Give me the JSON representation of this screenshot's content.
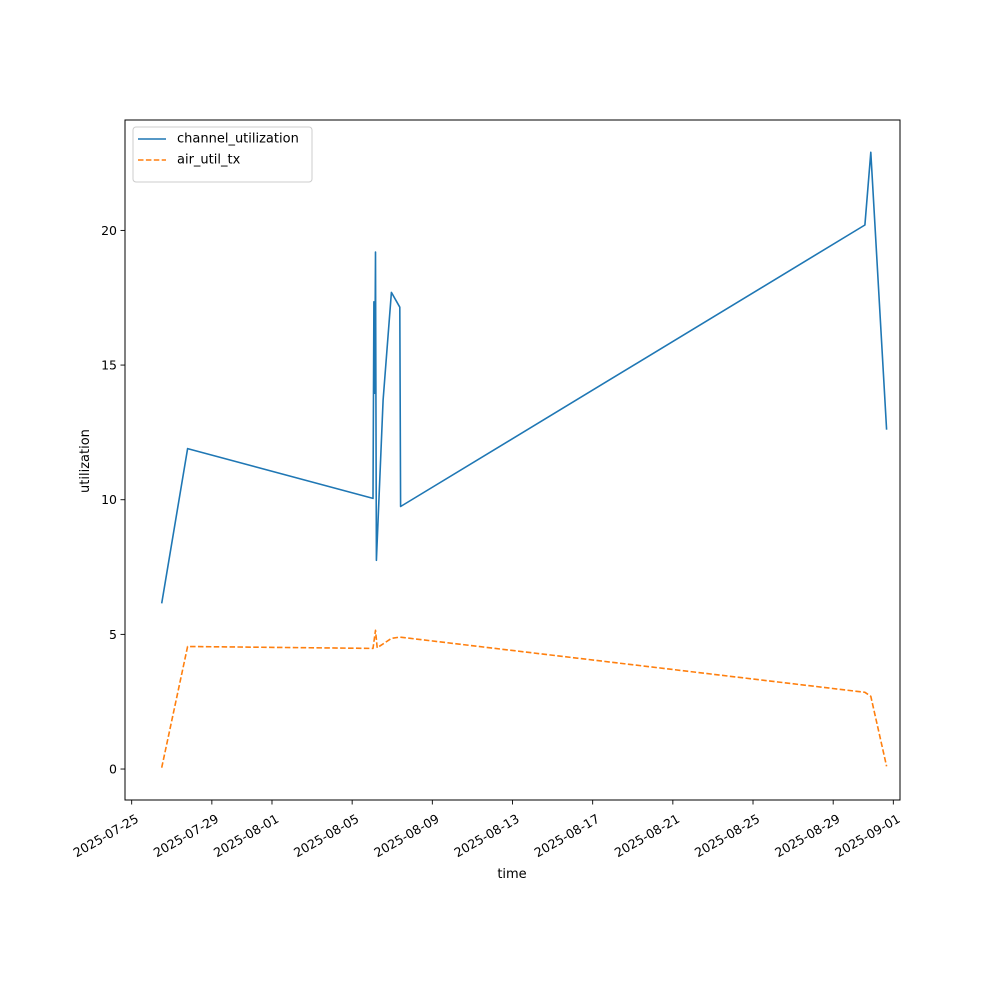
{
  "chart_data": {
    "type": "line",
    "xlabel": "time",
    "ylabel": "utilization",
    "xlim": [
      "2025-07-24T16:00:00",
      "2025-09-01T08:00:00"
    ],
    "ylim": [
      -1.15,
      24.1
    ],
    "x_ticks": [
      "2025-07-25",
      "2025-07-29",
      "2025-08-01",
      "2025-08-05",
      "2025-08-09",
      "2025-08-13",
      "2025-08-17",
      "2025-08-21",
      "2025-08-25",
      "2025-08-29",
      "2025-09-01"
    ],
    "y_ticks": [
      0,
      5,
      10,
      15,
      20
    ],
    "legend_position": "top-left",
    "grid": false,
    "series": [
      {
        "name": "channel_utilization",
        "color": "#1f77b4",
        "linestyle": "solid",
        "points": [
          [
            "2025-07-26T12:00:00",
            6.15
          ],
          [
            "2025-07-27T19:00:00",
            11.9
          ],
          [
            "2025-08-06T01:00:00",
            10.05
          ],
          [
            "2025-08-06T02:00:00",
            17.35
          ],
          [
            "2025-08-06T03:00:00",
            13.95
          ],
          [
            "2025-08-06T04:00:00",
            19.2
          ],
          [
            "2025-08-06T05:00:00",
            7.75
          ],
          [
            "2025-08-06T13:00:00",
            13.7
          ],
          [
            "2025-08-06T23:00:00",
            17.7
          ],
          [
            "2025-08-07T09:00:00",
            17.15
          ],
          [
            "2025-08-07T10:00:00",
            9.75
          ],
          [
            "2025-08-30T14:00:00",
            20.2
          ],
          [
            "2025-08-30T21:00:00",
            22.9
          ],
          [
            "2025-08-31T16:00:00",
            12.6
          ]
        ]
      },
      {
        "name": "air_util_tx",
        "color": "#ff7f0e",
        "linestyle": "dashed",
        "points": [
          [
            "2025-07-26T12:00:00",
            0.05
          ],
          [
            "2025-07-27T19:00:00",
            4.55
          ],
          [
            "2025-08-06T01:00:00",
            4.48
          ],
          [
            "2025-08-06T04:00:00",
            5.15
          ],
          [
            "2025-08-06T06:00:00",
            4.5
          ],
          [
            "2025-08-06T23:00:00",
            4.85
          ],
          [
            "2025-08-07T09:00:00",
            4.9
          ],
          [
            "2025-08-30T14:00:00",
            2.85
          ],
          [
            "2025-08-30T21:00:00",
            2.7
          ],
          [
            "2025-08-31T16:00:00",
            0.1
          ]
        ]
      }
    ]
  }
}
